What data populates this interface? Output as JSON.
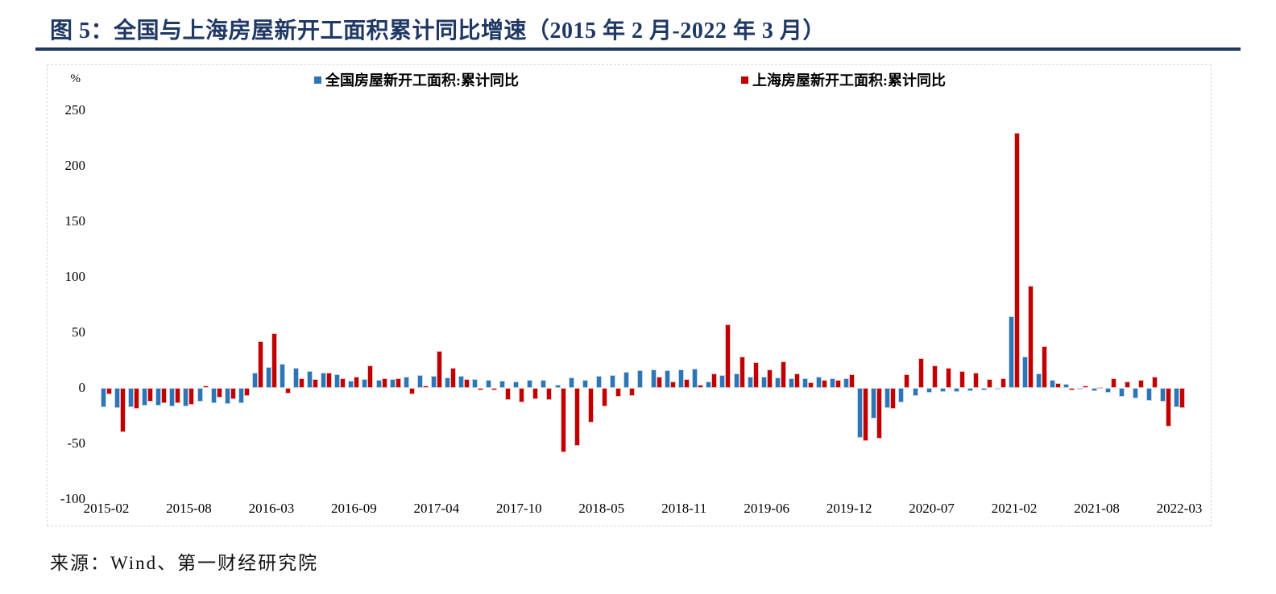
{
  "page": {
    "title": "图 5：全国与上海房屋新开工面积累计同比增速（2015 年 2 月-2022 年 3 月）",
    "source": "来源：Wind、第一财经研究院",
    "accent_color": "#1F3864"
  },
  "chart_data": {
    "type": "bar",
    "title": "全国与上海房屋新开工面积累计同比增速",
    "unit": "%",
    "grid": false,
    "legend_position": "top",
    "ylim": [
      -100,
      250
    ],
    "y_ticks": [
      250,
      200,
      150,
      100,
      50,
      0,
      -50,
      -100
    ],
    "x_tick_indices": [
      0,
      6,
      12,
      18,
      24,
      30,
      36,
      42,
      48,
      54,
      60,
      66,
      72,
      78
    ],
    "categories": [
      "2015-02",
      "2015-03",
      "2015-04",
      "2015-05",
      "2015-06",
      "2015-07",
      "2015-08",
      "2015-09",
      "2015-10",
      "2015-11",
      "2015-12",
      "2016-02",
      "2016-03",
      "2016-04",
      "2016-05",
      "2016-06",
      "2016-07",
      "2016-08",
      "2016-09",
      "2016-10",
      "2016-11",
      "2016-12",
      "2017-02",
      "2017-03",
      "2017-04",
      "2017-05",
      "2017-06",
      "2017-07",
      "2017-08",
      "2017-09",
      "2017-10",
      "2017-11",
      "2017-12",
      "2018-02",
      "2018-03",
      "2018-04",
      "2018-05",
      "2018-06",
      "2018-07",
      "2018-08",
      "2018-09",
      "2018-10",
      "2018-11",
      "2018-12",
      "2019-02",
      "2019-03",
      "2019-04",
      "2019-05",
      "2019-06",
      "2019-07",
      "2019-08",
      "2019-09",
      "2019-10",
      "2019-11",
      "2019-12",
      "2020-02",
      "2020-03",
      "2020-04",
      "2020-05",
      "2020-06",
      "2020-07",
      "2020-08",
      "2020-09",
      "2020-10",
      "2020-11",
      "2020-12",
      "2021-02",
      "2021-03",
      "2021-04",
      "2021-05",
      "2021-06",
      "2021-07",
      "2021-08",
      "2021-09",
      "2021-10",
      "2021-11",
      "2021-12",
      "2022-02",
      "2022-03"
    ],
    "series": [
      {
        "name": "全国房屋新开工面积:累计同比",
        "color": "#2E75B6",
        "values": [
          -17.7,
          -18.4,
          -17.3,
          -16.0,
          -15.8,
          -16.8,
          -16.8,
          -12.6,
          -13.9,
          -14.7,
          -14.0,
          13.7,
          19.2,
          21.4,
          18.3,
          14.9,
          13.7,
          12.2,
          6.8,
          8.1,
          7.6,
          8.1,
          10.4,
          11.6,
          11.1,
          9.5,
          10.6,
          8.0,
          7.6,
          6.8,
          5.6,
          6.9,
          7.0,
          2.9,
          9.7,
          7.3,
          10.8,
          11.8,
          14.4,
          15.9,
          16.4,
          16.3,
          16.8,
          17.2,
          6.0,
          11.9,
          13.1,
          10.5,
          10.1,
          9.5,
          8.9,
          8.6,
          10.0,
          8.6,
          8.5,
          -44.9,
          -27.2,
          -18.4,
          -12.8,
          -7.6,
          -4.5,
          -3.6,
          -3.4,
          -2.6,
          -2.0,
          -1.2,
          64.3,
          28.2,
          12.8,
          6.9,
          3.8,
          -0.9,
          -3.2,
          -4.5,
          -7.7,
          -9.1,
          -11.4,
          -12.2,
          -17.5
        ]
      },
      {
        "name": "上海房屋新开工面积:累计同比",
        "color": "#C00000",
        "values": [
          -6,
          -40,
          -19,
          -12,
          -14,
          -14,
          -15,
          2,
          -9,
          -10,
          -7,
          42,
          49,
          -5,
          9,
          8,
          14,
          9,
          10,
          20,
          9,
          9,
          -6,
          2,
          33,
          18,
          8,
          -2,
          -2,
          -11,
          -13,
          -10,
          -11,
          -58,
          -52,
          -31,
          -17,
          -8,
          -7,
          0,
          10,
          6,
          8,
          3,
          13,
          57,
          28,
          23,
          17,
          24,
          13,
          5,
          7,
          7,
          12,
          -48,
          -46,
          -19,
          12,
          27,
          20,
          18,
          15,
          14,
          8,
          9,
          230,
          92,
          38,
          4,
          -2,
          2,
          1,
          9,
          6,
          7,
          10,
          -35,
          -18
        ]
      }
    ]
  }
}
